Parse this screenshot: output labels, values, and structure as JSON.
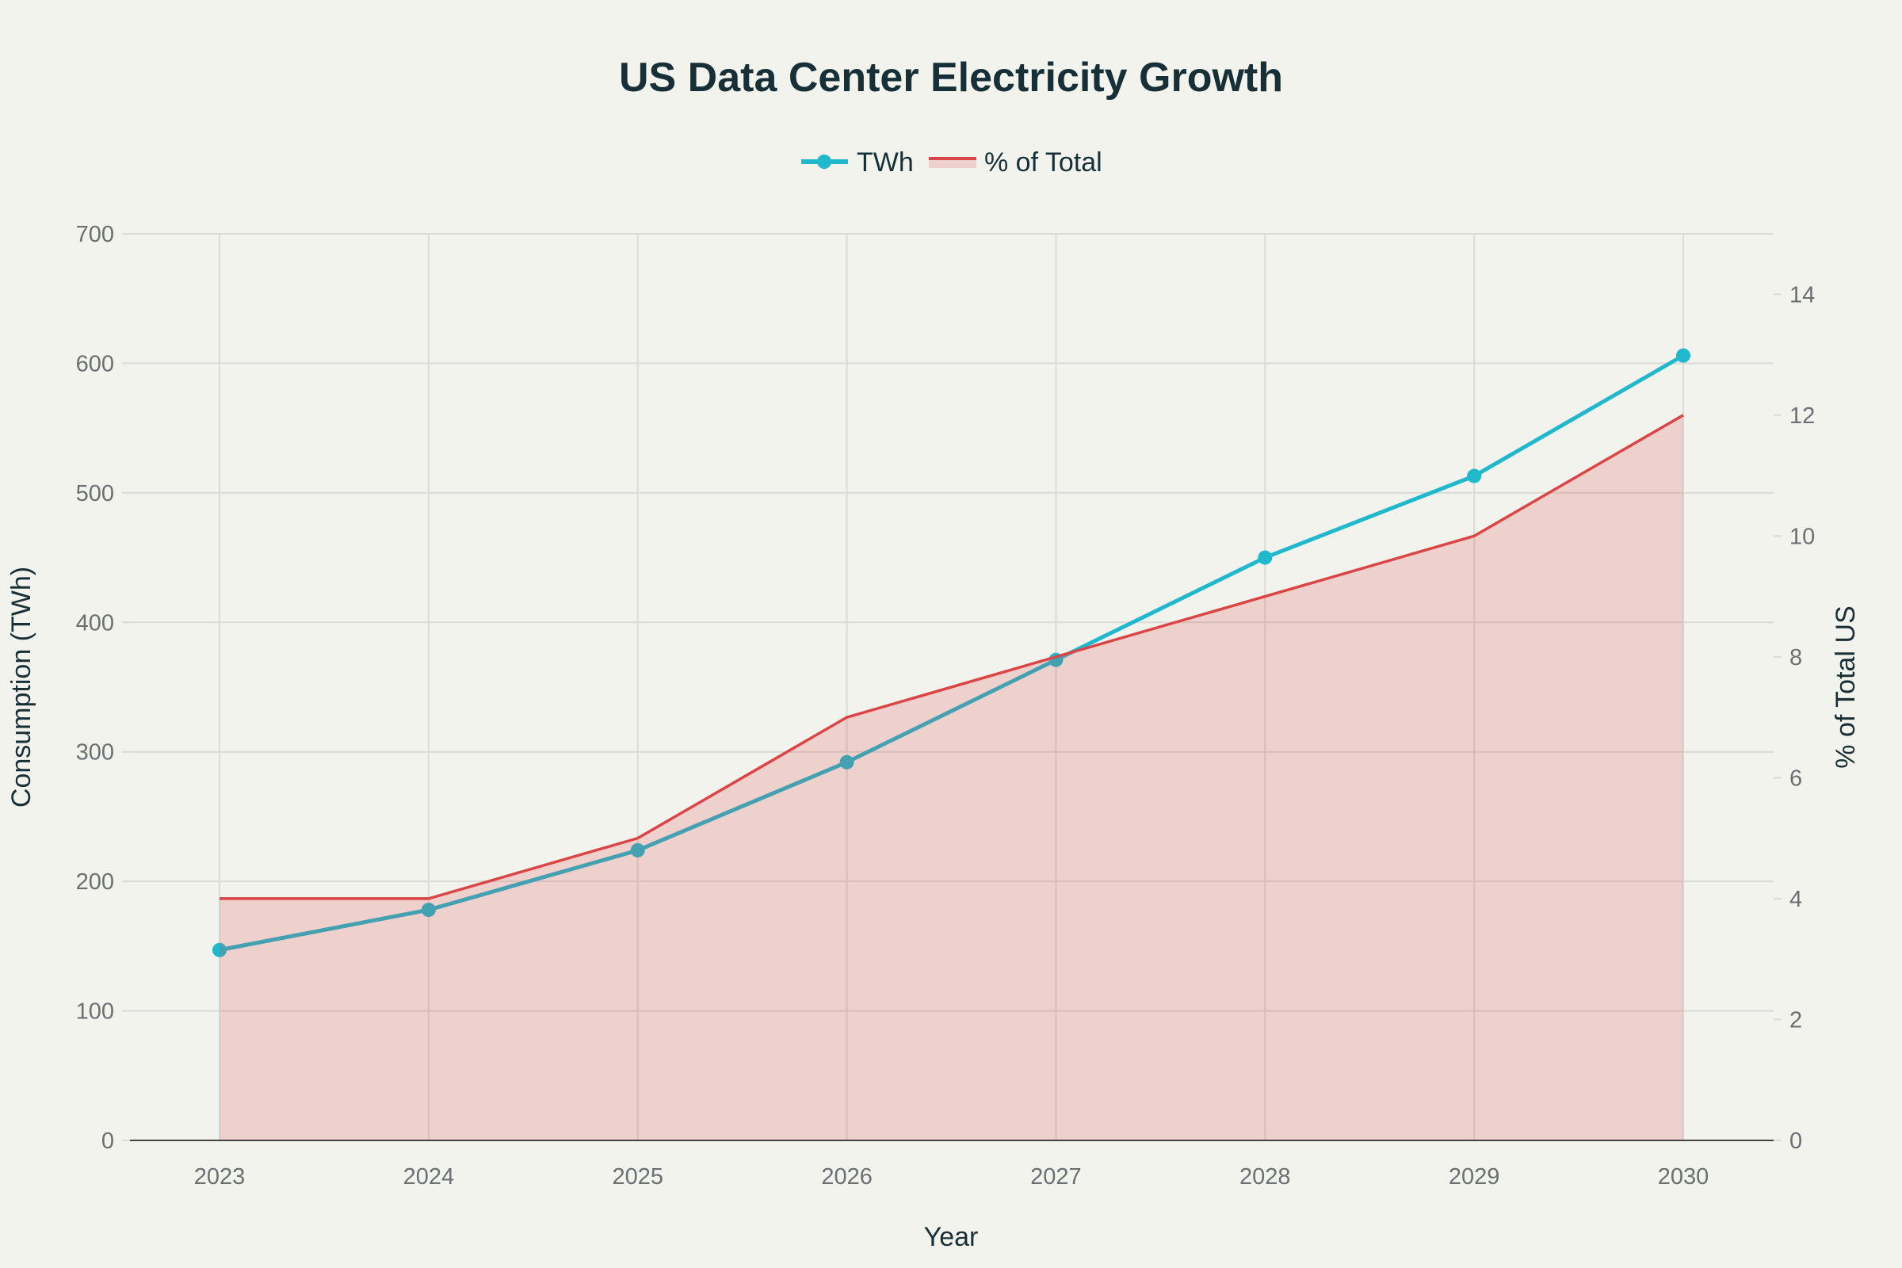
{
  "chart_data": {
    "type": "line",
    "title": "US Data Center Electricity Growth",
    "xlabel": "Year",
    "ylabel": "Consumption (TWh)",
    "y2label": "% of Total US",
    "categories": [
      "2023",
      "2024",
      "2025",
      "2026",
      "2027",
      "2028",
      "2029",
      "2030"
    ],
    "ylim": [
      0,
      700
    ],
    "y2lim": [
      0,
      15
    ],
    "yticks": [
      "0",
      "100",
      "200",
      "300",
      "400",
      "500",
      "600",
      "700"
    ],
    "y2ticks": [
      "0",
      "2",
      "4",
      "6",
      "8",
      "10",
      "12",
      "14"
    ],
    "legend_position": "top-center",
    "grid": true,
    "series": [
      {
        "name": "TWh",
        "axis": "left",
        "style": "line+markers",
        "color": "#1fb8cd",
        "values": [
          147,
          178,
          224,
          292,
          371,
          450,
          513,
          606
        ]
      },
      {
        "name": "% of Total",
        "axis": "right",
        "style": "area",
        "color": "#db4545",
        "values": [
          4,
          4,
          5,
          7,
          8,
          9,
          10,
          12
        ]
      }
    ]
  }
}
